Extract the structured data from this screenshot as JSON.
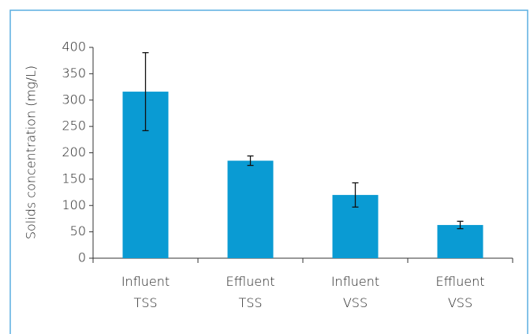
{
  "chart_data": {
    "type": "bar",
    "y_label": "Solids concentration (mg/L)",
    "categories": [
      "Influent TSS",
      "Effluent TSS",
      "Influent VSS",
      "Effluent VSS"
    ],
    "values": [
      316,
      185,
      120,
      63
    ],
    "errors": [
      74,
      9,
      23,
      7
    ],
    "color": "#0a9bd3",
    "ylim": [
      0,
      400
    ],
    "yticks": [
      0,
      50,
      100,
      150,
      200,
      250,
      300,
      350,
      400
    ],
    "grid": false
  }
}
